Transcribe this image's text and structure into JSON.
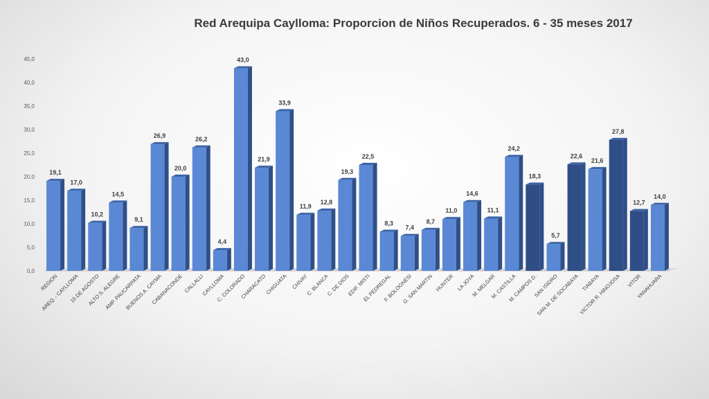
{
  "chart_data": {
    "type": "bar",
    "title": "Red Arequipa Caylloma: Proporcion de Niños Recuperados. 6 - 35 meses 2017",
    "categories": [
      "REGION",
      "AREQ. - CAYLLOMA",
      "15 DE AGOSTO",
      "ALTO S. ALEGRE",
      "AMP. PAUCARPATA",
      "BUENOS A. CAYMA",
      "CABANACONDE",
      "CALLALLI",
      "CAYLLOMA",
      "C. COLORADO",
      "CHARACATO",
      "CHIGUATA",
      "CHIVAY",
      "C. BLANCA",
      "C. DE DIOS",
      "EDIF. MISTI",
      "EL PEDREGAL",
      "F. BOLOGNESI",
      "G. SAN MARTIN",
      "HUNTER",
      "LA JOYA",
      "M. MELGAR",
      "M. CASTILLA",
      "M. CAMPOS D.",
      "SAN ISIDRO",
      "SAN M. DE SOCABAYA",
      "TIABAYA",
      "VICTOR R. HINOJOSA",
      "VITOR",
      "YANAHUARA"
    ],
    "values": [
      19.1,
      17.0,
      10.2,
      14.5,
      9.1,
      26.9,
      20.0,
      26.2,
      4.4,
      43.0,
      21.9,
      33.9,
      11.9,
      12.8,
      19.3,
      22.5,
      8.3,
      7.4,
      8.7,
      11.0,
      14.6,
      11.1,
      24.2,
      18.3,
      5.7,
      22.6,
      21.6,
      27.8,
      12.7,
      14.0
    ],
    "value_labels": [
      "19,1",
      "17,0",
      "10,2",
      "14,5",
      "9,1",
      "26,9",
      "20,0",
      "26,2",
      "4,4",
      "43,0",
      "21,9",
      "33,9",
      "11,9",
      "12,8",
      "19,3",
      "22,5",
      "8,3",
      "7,4",
      "8,7",
      "11,0",
      "14,6",
      "11,1",
      "24,2",
      "18,3",
      "5,7",
      "22,6",
      "21,6",
      "27,8",
      "12,7",
      "14,0"
    ],
    "y_ticks": [
      "0,0",
      "5,0",
      "10,0",
      "15,0",
      "20,0",
      "25,0",
      "30,0",
      "35,0",
      "40,0",
      "45,0"
    ],
    "ylim": [
      0,
      45
    ],
    "y_step": 5,
    "xlabel": "",
    "ylabel": "",
    "grid": false,
    "legend": "none",
    "colors": {
      "bar_front": "#5a88d4",
      "bar_side": "#2f4f87",
      "bar_top": "#3e64a8",
      "dark_bar_front": "#304e86",
      "floor": "#d9d9d9"
    }
  }
}
